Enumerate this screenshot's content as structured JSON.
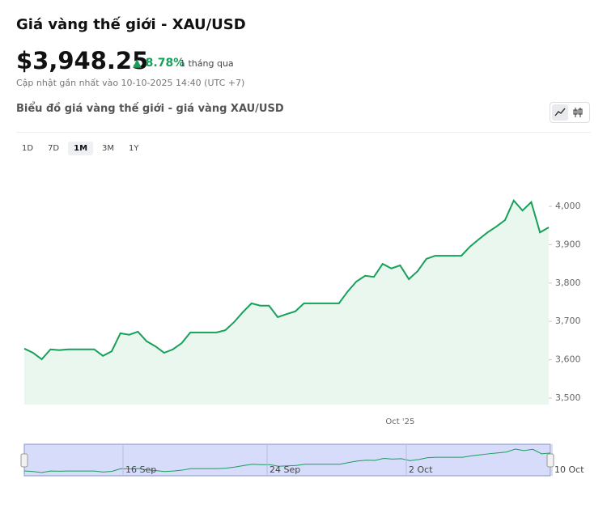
{
  "header": {
    "title": "Giá vàng thế giới - XAU/USD",
    "price": "$3,948.25",
    "change": "8.78%",
    "period": "1 tháng qua",
    "updated": "Cập nhật gần nhất vào 10-10-2025 14:40 (UTC +7)"
  },
  "chart_heading": "Biểu đồ giá vàng thế giới - giá vàng XAU/USD",
  "tabs": [
    "1D",
    "7D",
    "1M",
    "3M",
    "1Y"
  ],
  "active_tab": 2,
  "chart_data": {
    "type": "line",
    "color": "#16a05a",
    "fill": "#eaf7ef",
    "categories": [
      null,
      null,
      null,
      null,
      null,
      null,
      null,
      null,
      null,
      null,
      null,
      null,
      null,
      null,
      null,
      null,
      null,
      null,
      null,
      null,
      null,
      null,
      null,
      null,
      null,
      null,
      null,
      null,
      null,
      null,
      null,
      null,
      null,
      null,
      null,
      null,
      null,
      null,
      null,
      null,
      null,
      null,
      null,
      "Oct '25",
      null,
      null,
      null,
      null,
      null,
      null,
      null,
      null,
      null,
      null,
      null,
      null,
      null,
      null,
      null,
      null,
      null
    ],
    "values": [
      3629,
      3618,
      3601,
      3627,
      3625,
      3627,
      3627,
      3627,
      3627,
      3610,
      3622,
      3669,
      3665,
      3673,
      3648,
      3635,
      3618,
      3627,
      3643,
      3671,
      3671,
      3671,
      3671,
      3677,
      3698,
      3724,
      3747,
      3741,
      3741,
      3711,
      3719,
      3726,
      3747,
      3747,
      3747,
      3747,
      3747,
      3778,
      3804,
      3819,
      3816,
      3850,
      3838,
      3846,
      3810,
      3831,
      3863,
      3871,
      3871,
      3871,
      3871,
      3895,
      3914,
      3932,
      3947,
      3964,
      4015,
      3989,
      4011,
      3932,
      3945
    ],
    "ylim": [
      3483,
      4116
    ],
    "yticks": [
      {
        "value": 3500,
        "label": "3,500"
      },
      {
        "value": 3600,
        "label": "3,600"
      },
      {
        "value": 3700,
        "label": "3,700"
      },
      {
        "value": 3800,
        "label": "3,800"
      },
      {
        "value": 3900,
        "label": "3,900"
      },
      {
        "value": 4000,
        "label": "4,000"
      }
    ],
    "navigator_labels": [
      "16 Sep",
      "24 Sep",
      "2 Oct",
      "10 Oct"
    ]
  }
}
